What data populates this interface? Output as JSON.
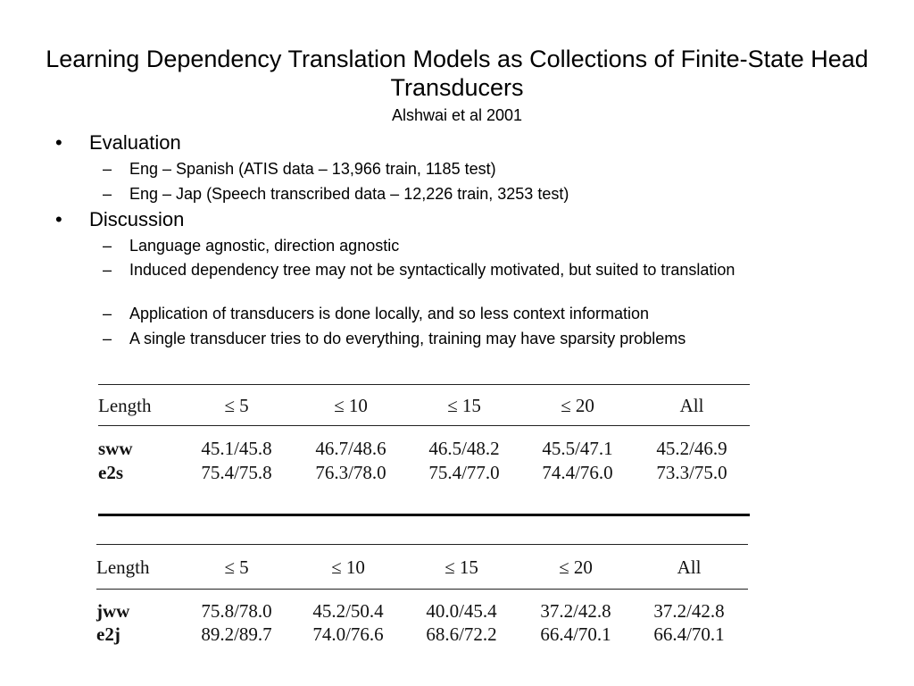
{
  "title": "Learning Dependency Translation Models as Collections of Finite-State Head Transducers",
  "subtitle": "Alshwai et al 2001",
  "sections": [
    {
      "heading": "Evaluation",
      "bullet": "•",
      "items": [
        {
          "dash": "–",
          "text": "Eng – Spanish (ATIS data – 13,966 train, 1185 test)"
        },
        {
          "dash": "–",
          "text": "Eng – Jap (Speech transcribed data – 12,226 train, 3253 test)"
        }
      ]
    },
    {
      "heading": "Discussion",
      "bullet": "•",
      "items": [
        {
          "dash": "–",
          "text": "Language agnostic, direction agnostic"
        },
        {
          "dash": "–",
          "text": "Induced dependency tree may not be syntactically motivated, but suited to translation"
        },
        {
          "dash": "–",
          "text": "Application of transducers is done locally, and so less context information"
        },
        {
          "dash": "–",
          "text": "A single transducer tries to do everything, training may have sparsity problems"
        }
      ]
    }
  ],
  "tables": [
    {
      "header": [
        "Length",
        "≤ 5",
        "≤ 10",
        "≤ 15",
        "≤ 20",
        "All"
      ],
      "rows": [
        [
          "sww",
          "45.1/45.8",
          "46.7/48.6",
          "46.5/48.2",
          "45.5/47.1",
          "45.2/46.9"
        ],
        [
          "e2s",
          "75.4/75.8",
          "76.3/78.0",
          "75.4/77.0",
          "74.4/76.0",
          "73.3/75.0"
        ]
      ]
    },
    {
      "header": [
        "Length",
        "≤ 5",
        "≤ 10",
        "≤ 15",
        "≤ 20",
        "All"
      ],
      "rows": [
        [
          "jww",
          "75.8/78.0",
          "45.2/50.4",
          "40.0/45.4",
          "37.2/42.8",
          "37.2/42.8"
        ],
        [
          "e2j",
          "89.2/89.7",
          "74.0/76.6",
          "68.6/72.2",
          "66.4/70.1",
          "66.4/70.1"
        ]
      ]
    }
  ]
}
